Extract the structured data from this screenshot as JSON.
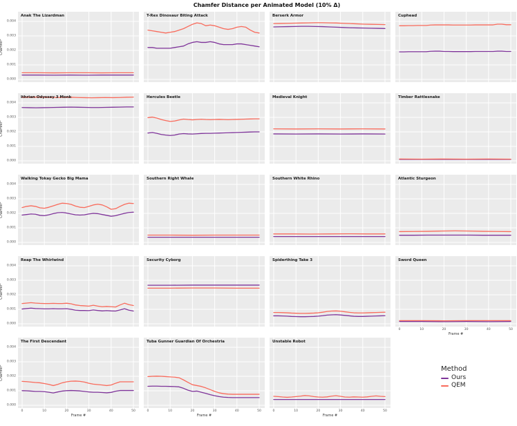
{
  "figure": {
    "title": "Chamfer Distance per Animated Model (10% Δ)"
  },
  "axes": {
    "ylabel": "Chamfer²",
    "xlabel": "Frame #",
    "ytick_labels": [
      "0.000",
      "0.001",
      "0.002",
      "0.003",
      "0.004"
    ],
    "ytick_values": [
      0,
      0.001,
      0.002,
      0.003,
      0.004
    ],
    "xticks": [
      0,
      10,
      20,
      30,
      40,
      50
    ],
    "xlim": [
      0,
      50
    ],
    "ylim": [
      0,
      0.00446
    ],
    "grid": true
  },
  "colors": {
    "ours": "#7E3399",
    "qem": "#F96A5B",
    "panel_bg": "#EBEBEB",
    "gridline": "#FFFFFF"
  },
  "legend": {
    "title": "Method",
    "items": [
      {
        "label": "Ours",
        "color": "#7E3399"
      },
      {
        "label": "QEM",
        "color": "#F96A5B"
      }
    ]
  },
  "chart_data": {
    "type": "line",
    "x_is_evenly_spaced_frames": true,
    "series_names": [
      "Ours",
      "QEM"
    ],
    "subplots": [
      {
        "title": "Anak The Lizardman",
        "qem": [
          0.00046,
          0.00046,
          0.00045,
          0.00046,
          0.00046,
          0.00045,
          0.00046,
          0.00046
        ],
        "ours": [
          0.0003,
          0.0003,
          0.00029,
          0.0003,
          0.00029,
          0.0003,
          0.0003,
          0.0003
        ]
      },
      {
        "title": "T-Rex Dinosaur Biting Attack",
        "qem": [
          0.0034,
          0.00335,
          0.0033,
          0.00325,
          0.0032,
          0.00325,
          0.0033,
          0.0034,
          0.0035,
          0.00365,
          0.0038,
          0.0039,
          0.00385,
          0.0037,
          0.00375,
          0.0037,
          0.0036,
          0.0035,
          0.00345,
          0.0035,
          0.0036,
          0.00365,
          0.0036,
          0.0034,
          0.00325,
          0.0032
        ],
        "ours": [
          0.0022,
          0.0022,
          0.00215,
          0.00215,
          0.00215,
          0.00215,
          0.0022,
          0.00225,
          0.0023,
          0.00245,
          0.00255,
          0.0026,
          0.00255,
          0.00255,
          0.0026,
          0.00255,
          0.00245,
          0.0024,
          0.0024,
          0.0024,
          0.00245,
          0.00245,
          0.0024,
          0.00235,
          0.0023,
          0.00225
        ]
      },
      {
        "title": "Berserk Armor",
        "qem": [
          0.00385,
          0.00386,
          0.00387,
          0.00388,
          0.00389,
          0.0039,
          0.00391,
          0.00391,
          0.0039,
          0.00389,
          0.00387,
          0.00385,
          0.00383,
          0.00381,
          0.0038,
          0.00379,
          0.00378
        ],
        "ours": [
          0.00362,
          0.00363,
          0.00364,
          0.00365,
          0.00366,
          0.00366,
          0.00365,
          0.00364,
          0.00362,
          0.0036,
          0.00358,
          0.00356,
          0.00355,
          0.00354,
          0.00353,
          0.00352,
          0.00351
        ]
      },
      {
        "title": "Cuphead",
        "qem": [
          0.0037,
          0.0037,
          0.00371,
          0.00371,
          0.00372,
          0.00372,
          0.00372,
          0.00375,
          0.00376,
          0.00376,
          0.00376,
          0.00376,
          0.00375,
          0.00375,
          0.00375,
          0.00375,
          0.00375,
          0.00376,
          0.00376,
          0.00376,
          0.00376,
          0.00376,
          0.00381,
          0.00381,
          0.00377,
          0.00377
        ],
        "ours": [
          0.0019,
          0.0019,
          0.00191,
          0.00191,
          0.00191,
          0.00191,
          0.00191,
          0.00194,
          0.00195,
          0.00195,
          0.00193,
          0.00193,
          0.00192,
          0.00192,
          0.00192,
          0.00192,
          0.00192,
          0.00193,
          0.00193,
          0.00193,
          0.00193,
          0.00193,
          0.00195,
          0.00195,
          0.00193,
          0.00193
        ]
      },
      {
        "title": "Ithrian Odyssey 3 Monk",
        "qem": [
          0.00438,
          0.00439,
          0.0044,
          0.00439,
          0.00438,
          0.00437,
          0.00438,
          0.00439,
          0.00437,
          0.00436,
          0.00435,
          0.00436,
          0.00437,
          0.00436,
          0.00437,
          0.00439,
          0.0044
        ],
        "ours": [
          0.00368,
          0.00367,
          0.00366,
          0.00367,
          0.00368,
          0.00369,
          0.0037,
          0.00371,
          0.0037,
          0.00369,
          0.00368,
          0.00368,
          0.00369,
          0.0037,
          0.00371,
          0.00372,
          0.00372
        ]
      },
      {
        "title": "Hercules Beetle",
        "qem": [
          0.00298,
          0.00302,
          0.00295,
          0.00285,
          0.00278,
          0.00272,
          0.00275,
          0.00282,
          0.00288,
          0.00285,
          0.00283,
          0.00285,
          0.00287,
          0.00285,
          0.00284,
          0.00285,
          0.00286,
          0.00285,
          0.00284,
          0.00285,
          0.00286,
          0.00287,
          0.00288,
          0.00289,
          0.0029,
          0.0029
        ],
        "ours": [
          0.00192,
          0.00196,
          0.0019,
          0.00182,
          0.00178,
          0.00175,
          0.00178,
          0.00185,
          0.00188,
          0.00186,
          0.00185,
          0.00187,
          0.00189,
          0.0019,
          0.0019,
          0.00191,
          0.00192,
          0.00193,
          0.00194,
          0.00195,
          0.00196,
          0.00197,
          0.00198,
          0.00199,
          0.002,
          0.002
        ]
      },
      {
        "title": "Medieval Knight",
        "qem": [
          0.00221,
          0.0022,
          0.00221,
          0.0022,
          0.00221,
          0.0022
        ],
        "ours": [
          0.00186,
          0.00185,
          0.00186,
          0.00185,
          0.00186,
          0.00185
        ]
      },
      {
        "title": "Timber Rattlesnake",
        "qem": [
          0.00013,
          0.00012,
          0.00013,
          0.00012,
          0.00013,
          0.00012
        ],
        "ours": [
          0.0001,
          0.0001,
          0.0001,
          0.0001,
          0.0001,
          0.0001
        ]
      },
      {
        "title": "Walking Tokay Gecko Big Mama",
        "qem": [
          0.0024,
          0.00248,
          0.00252,
          0.00248,
          0.00238,
          0.00235,
          0.00242,
          0.00252,
          0.00262,
          0.0027,
          0.00268,
          0.00262,
          0.0025,
          0.00242,
          0.0024,
          0.00248,
          0.00258,
          0.00263,
          0.00258,
          0.00245,
          0.00228,
          0.00232,
          0.00248,
          0.00262,
          0.0027,
          0.00268
        ],
        "ours": [
          0.00188,
          0.00192,
          0.00196,
          0.00194,
          0.00186,
          0.00184,
          0.0019,
          0.00198,
          0.00204,
          0.00206,
          0.00202,
          0.00196,
          0.0019,
          0.00188,
          0.0019,
          0.00196,
          0.002,
          0.00198,
          0.00192,
          0.00186,
          0.0018,
          0.00184,
          0.00192,
          0.002,
          0.00206,
          0.00208
        ]
      },
      {
        "title": "Southern Right Whale",
        "qem": [
          0.0005,
          0.0005,
          0.00049,
          0.0005,
          0.0005,
          0.0005
        ],
        "ours": [
          0.00035,
          0.00035,
          0.00035,
          0.00035,
          0.00035,
          0.00035
        ]
      },
      {
        "title": "Southern White Rhino",
        "qem": [
          0.00058,
          0.00058,
          0.00057,
          0.00058,
          0.00059,
          0.00058,
          0.00058
        ],
        "ours": [
          0.0004,
          0.0004,
          0.0004,
          0.0004,
          0.0004,
          0.0004,
          0.0004
        ]
      },
      {
        "title": "Atlantic Sturgeon",
        "qem": [
          0.00074,
          0.00075,
          0.00076,
          0.00078,
          0.00079,
          0.00078,
          0.00076,
          0.00075,
          0.00074
        ],
        "ours": [
          0.00049,
          0.00049,
          0.0005,
          0.0005,
          0.0005,
          0.0005,
          0.00049,
          0.00049,
          0.00049
        ]
      },
      {
        "title": "Reap The Whirlwind",
        "qem": [
          0.0014,
          0.00143,
          0.00146,
          0.00143,
          0.00141,
          0.0014,
          0.0014,
          0.00141,
          0.0014,
          0.0014,
          0.00142,
          0.00138,
          0.0013,
          0.00126,
          0.00124,
          0.00122,
          0.00128,
          0.00122,
          0.00118,
          0.0012,
          0.00118,
          0.00116,
          0.0013,
          0.00142,
          0.00132,
          0.00126
        ],
        "ours": [
          0.00102,
          0.00105,
          0.00108,
          0.00105,
          0.00104,
          0.00103,
          0.00103,
          0.00104,
          0.00103,
          0.00103,
          0.00104,
          0.001,
          0.00094,
          0.00092,
          0.00092,
          0.00091,
          0.00096,
          0.00092,
          0.00089,
          0.00091,
          0.00089,
          0.00088,
          0.00096,
          0.00104,
          0.00094,
          0.00088
        ]
      },
      {
        "title": "Security Cyborg",
        "qem": [
          0.00246,
          0.00246,
          0.00247,
          0.00247,
          0.00246,
          0.00246
        ],
        "ours": [
          0.00266,
          0.00266,
          0.00267,
          0.00267,
          0.00267,
          0.00267
        ]
      },
      {
        "title": "Spiderthing Take 3",
        "qem": [
          0.00078,
          0.00078,
          0.00077,
          0.00076,
          0.00074,
          0.00073,
          0.00072,
          0.00072,
          0.00073,
          0.00074,
          0.00076,
          0.0008,
          0.00085,
          0.00088,
          0.00089,
          0.00087,
          0.00083,
          0.00079,
          0.00076,
          0.00075,
          0.00075,
          0.00076,
          0.00077,
          0.00078,
          0.00079,
          0.0008
        ],
        "ours": [
          0.00055,
          0.00055,
          0.00054,
          0.00053,
          0.00051,
          0.0005,
          0.00049,
          0.00049,
          0.0005,
          0.00051,
          0.00053,
          0.00056,
          0.0006,
          0.00062,
          0.00063,
          0.00061,
          0.00058,
          0.00055,
          0.00052,
          0.00051,
          0.00051,
          0.00052,
          0.00053,
          0.00054,
          0.00055,
          0.00056
        ]
      },
      {
        "title": "Sword Queen",
        "qem": [
          0.00022,
          0.00022,
          0.00021,
          0.00022,
          0.00022,
          0.00022
        ],
        "ours": [
          0.00016,
          0.00016,
          0.00015,
          0.00016,
          0.00015,
          0.00016
        ]
      },
      {
        "title": "The First Descendant",
        "qem": [
          0.00165,
          0.00163,
          0.0016,
          0.00157,
          0.00155,
          0.0015,
          0.00144,
          0.00136,
          0.00144,
          0.00155,
          0.00162,
          0.00166,
          0.00167,
          0.00165,
          0.0016,
          0.00152,
          0.00146,
          0.00143,
          0.0014,
          0.00136,
          0.0014,
          0.00152,
          0.00162,
          0.00162,
          0.00162,
          0.00162
        ],
        "ours": [
          0.00101,
          0.001,
          0.00098,
          0.00096,
          0.00096,
          0.00094,
          0.0009,
          0.00085,
          0.00092,
          0.00098,
          0.00101,
          0.00102,
          0.00101,
          0.00099,
          0.00096,
          0.00092,
          0.0009,
          0.0009,
          0.00088,
          0.00086,
          0.00089,
          0.00097,
          0.00102,
          0.00102,
          0.00102,
          0.00102
        ]
      },
      {
        "title": "Tuba Gunner Guardian Of Orchestria",
        "qem": [
          0.00198,
          0.002,
          0.00201,
          0.002,
          0.00198,
          0.00196,
          0.00194,
          0.0019,
          0.00175,
          0.00158,
          0.00142,
          0.00136,
          0.0013,
          0.0012,
          0.00108,
          0.00096,
          0.00086,
          0.0008,
          0.00077,
          0.00076,
          0.00076,
          0.00076,
          0.00076,
          0.00076,
          0.00076,
          0.00076
        ],
        "ours": [
          0.00131,
          0.00132,
          0.00132,
          0.00131,
          0.00131,
          0.0013,
          0.00129,
          0.00127,
          0.00117,
          0.00104,
          0.00096,
          0.00098,
          0.0009,
          0.00082,
          0.00073,
          0.00066,
          0.0006,
          0.00056,
          0.00054,
          0.00053,
          0.00053,
          0.00053,
          0.00053,
          0.00053,
          0.00053,
          0.00053
        ]
      },
      {
        "title": "Unstable Robot",
        "qem": [
          0.00062,
          0.0006,
          0.00057,
          0.00055,
          0.00057,
          0.0006,
          0.00063,
          0.00067,
          0.00065,
          0.0006,
          0.00057,
          0.00056,
          0.00058,
          0.00063,
          0.00066,
          0.00062,
          0.00057,
          0.00056,
          0.00058,
          0.00057,
          0.00056,
          0.00058,
          0.00062,
          0.00065,
          0.00062,
          0.0006
        ],
        "ours": [
          0.0004,
          0.0004,
          0.0004,
          0.0004,
          0.0004,
          0.0004,
          0.0004,
          0.0004,
          0.0004,
          0.0004,
          0.0004,
          0.0004,
          0.0004,
          0.0004,
          0.0004,
          0.0004,
          0.0004,
          0.0004,
          0.0004,
          0.0004,
          0.0004,
          0.0004,
          0.0004,
          0.0004,
          0.0004,
          0.0004
        ]
      }
    ]
  }
}
